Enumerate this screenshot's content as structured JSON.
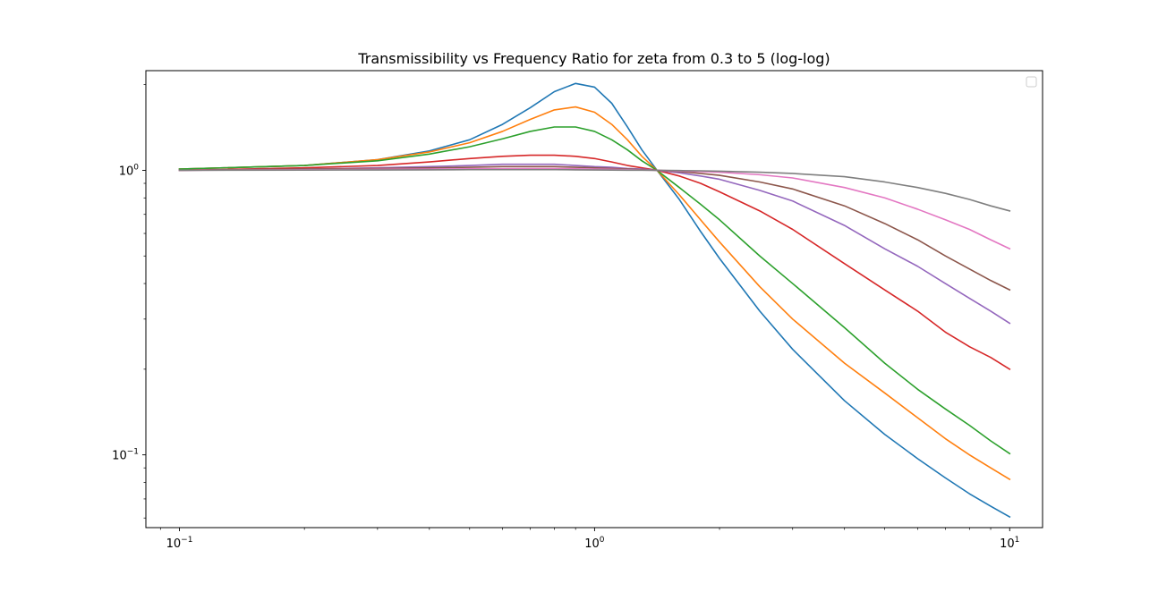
{
  "chart_data": {
    "type": "line",
    "title": "Transmissibility vs Frequency Ratio for zeta from 0.3 to 5 (log-log)",
    "xlabel": "",
    "ylabel": "",
    "xscale": "log",
    "yscale": "log",
    "xlim": [
      0.083,
      12.0
    ],
    "ylim": [
      0.0555,
      2.24
    ],
    "grid": false,
    "legend": "top-right (empty)",
    "x_ticks": [
      {
        "value": 0.1,
        "base": "10",
        "exp": "−1"
      },
      {
        "value": 1,
        "base": "10",
        "exp": "0"
      },
      {
        "value": 10,
        "base": "10",
        "exp": "1"
      }
    ],
    "y_ticks": [
      {
        "value": 0.1,
        "base": "10",
        "exp": "−1"
      },
      {
        "value": 1,
        "base": "10",
        "exp": "0"
      }
    ],
    "x": [
      0.1,
      0.2,
      0.3,
      0.4,
      0.5,
      0.6,
      0.7,
      0.8,
      0.9,
      1.0,
      1.1,
      1.2,
      1.3,
      1.414,
      1.6,
      1.8,
      2.0,
      2.5,
      3.0,
      4.0,
      5.0,
      6.0,
      7.0,
      8.0,
      9.0,
      10.0
    ],
    "series": [
      {
        "color": "#1f77b4",
        "values": [
          1.01,
          1.04,
          1.09,
          1.17,
          1.28,
          1.45,
          1.66,
          1.89,
          2.02,
          1.96,
          1.72,
          1.42,
          1.18,
          1.0,
          0.79,
          0.61,
          0.49,
          0.32,
          0.235,
          0.155,
          0.118,
          0.097,
          0.083,
          0.073,
          0.066,
          0.0605
        ]
      },
      {
        "color": "#ff7f0e",
        "values": [
          1.01,
          1.04,
          1.09,
          1.16,
          1.25,
          1.37,
          1.51,
          1.63,
          1.67,
          1.6,
          1.45,
          1.28,
          1.12,
          1.0,
          0.82,
          0.67,
          0.56,
          0.39,
          0.3,
          0.21,
          0.165,
          0.135,
          0.114,
          0.1,
          0.09,
          0.082
        ]
      },
      {
        "color": "#2ca02c",
        "values": [
          1.01,
          1.04,
          1.08,
          1.14,
          1.21,
          1.29,
          1.37,
          1.42,
          1.42,
          1.37,
          1.28,
          1.18,
          1.08,
          1.0,
          0.87,
          0.76,
          0.67,
          0.5,
          0.4,
          0.28,
          0.21,
          0.17,
          0.145,
          0.127,
          0.112,
          0.101
        ]
      },
      {
        "color": "#d62728",
        "values": [
          1.0,
          1.02,
          1.04,
          1.07,
          1.1,
          1.12,
          1.13,
          1.13,
          1.12,
          1.1,
          1.07,
          1.04,
          1.02,
          1.0,
          0.955,
          0.9,
          0.84,
          0.72,
          0.62,
          0.47,
          0.38,
          0.32,
          0.27,
          0.24,
          0.22,
          0.2
        ]
      },
      {
        "color": "#9467bd",
        "values": [
          1.0,
          1.01,
          1.02,
          1.03,
          1.04,
          1.05,
          1.05,
          1.05,
          1.04,
          1.03,
          1.025,
          1.015,
          1.01,
          1.0,
          0.98,
          0.955,
          0.93,
          0.85,
          0.78,
          0.64,
          0.53,
          0.46,
          0.4,
          0.355,
          0.32,
          0.29
        ]
      },
      {
        "color": "#8c564b",
        "values": [
          1.0,
          1.01,
          1.015,
          1.02,
          1.025,
          1.03,
          1.03,
          1.03,
          1.025,
          1.02,
          1.015,
          1.01,
          1.005,
          1.0,
          0.99,
          0.975,
          0.96,
          0.91,
          0.86,
          0.75,
          0.65,
          0.57,
          0.5,
          0.45,
          0.41,
          0.38
        ]
      },
      {
        "color": "#e377c2",
        "values": [
          1.0,
          1.005,
          1.008,
          1.01,
          1.012,
          1.013,
          1.014,
          1.014,
          1.012,
          1.01,
          1.008,
          1.005,
          1.002,
          1.0,
          0.995,
          0.99,
          0.985,
          0.965,
          0.94,
          0.87,
          0.8,
          0.73,
          0.67,
          0.62,
          0.57,
          0.53
        ]
      },
      {
        "color": "#7f7f7f",
        "values": [
          1.0,
          1.002,
          1.003,
          1.004,
          1.005,
          1.005,
          1.005,
          1.005,
          1.004,
          1.003,
          1.002,
          1.001,
          1.0005,
          1.0,
          0.998,
          0.996,
          0.993,
          0.985,
          0.975,
          0.95,
          0.91,
          0.87,
          0.83,
          0.79,
          0.75,
          0.72
        ]
      }
    ]
  }
}
